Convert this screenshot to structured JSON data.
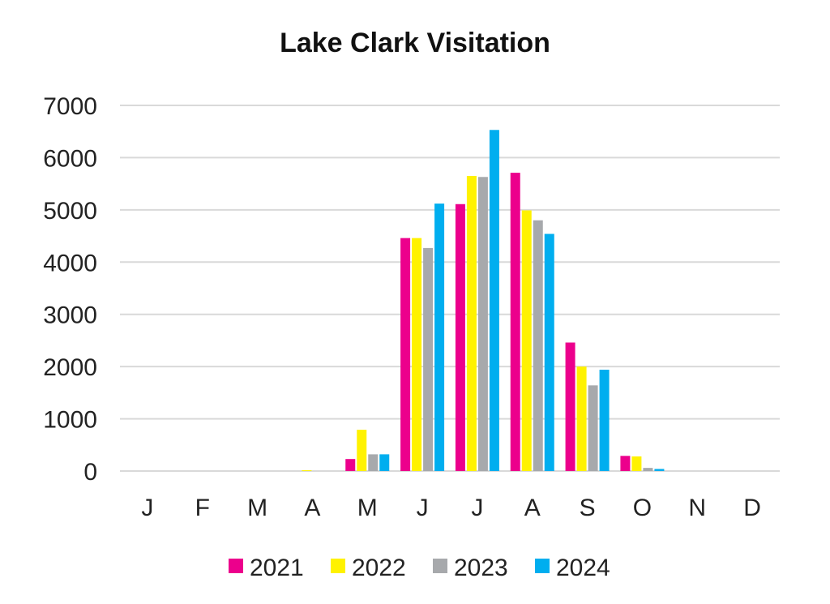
{
  "chart_data": {
    "type": "bar",
    "title": "Lake Clark Visitation",
    "xlabel": "",
    "ylabel": "",
    "ylim": [
      0,
      7000
    ],
    "yticks": [
      0,
      1000,
      2000,
      3000,
      4000,
      5000,
      6000,
      7000
    ],
    "categories": [
      "J",
      "F",
      "M",
      "A",
      "M",
      "J",
      "J",
      "A",
      "S",
      "O",
      "N",
      "D"
    ],
    "grid": true,
    "legend_position": "bottom",
    "series": [
      {
        "name": "2021",
        "color": "#ec008c",
        "values": [
          0,
          0,
          0,
          0,
          230,
          4460,
          5110,
          5710,
          2460,
          290,
          0,
          0
        ]
      },
      {
        "name": "2022",
        "color": "#fff200",
        "values": [
          0,
          0,
          0,
          15,
          790,
          4460,
          5650,
          4990,
          2000,
          280,
          0,
          0
        ]
      },
      {
        "name": "2023",
        "color": "#a7a9ac",
        "values": [
          0,
          0,
          0,
          0,
          320,
          4270,
          5630,
          4800,
          1640,
          60,
          0,
          0
        ]
      },
      {
        "name": "2024",
        "color": "#00aeef",
        "values": [
          0,
          0,
          0,
          0,
          320,
          5120,
          6530,
          4540,
          1940,
          40,
          0,
          0
        ]
      }
    ]
  }
}
